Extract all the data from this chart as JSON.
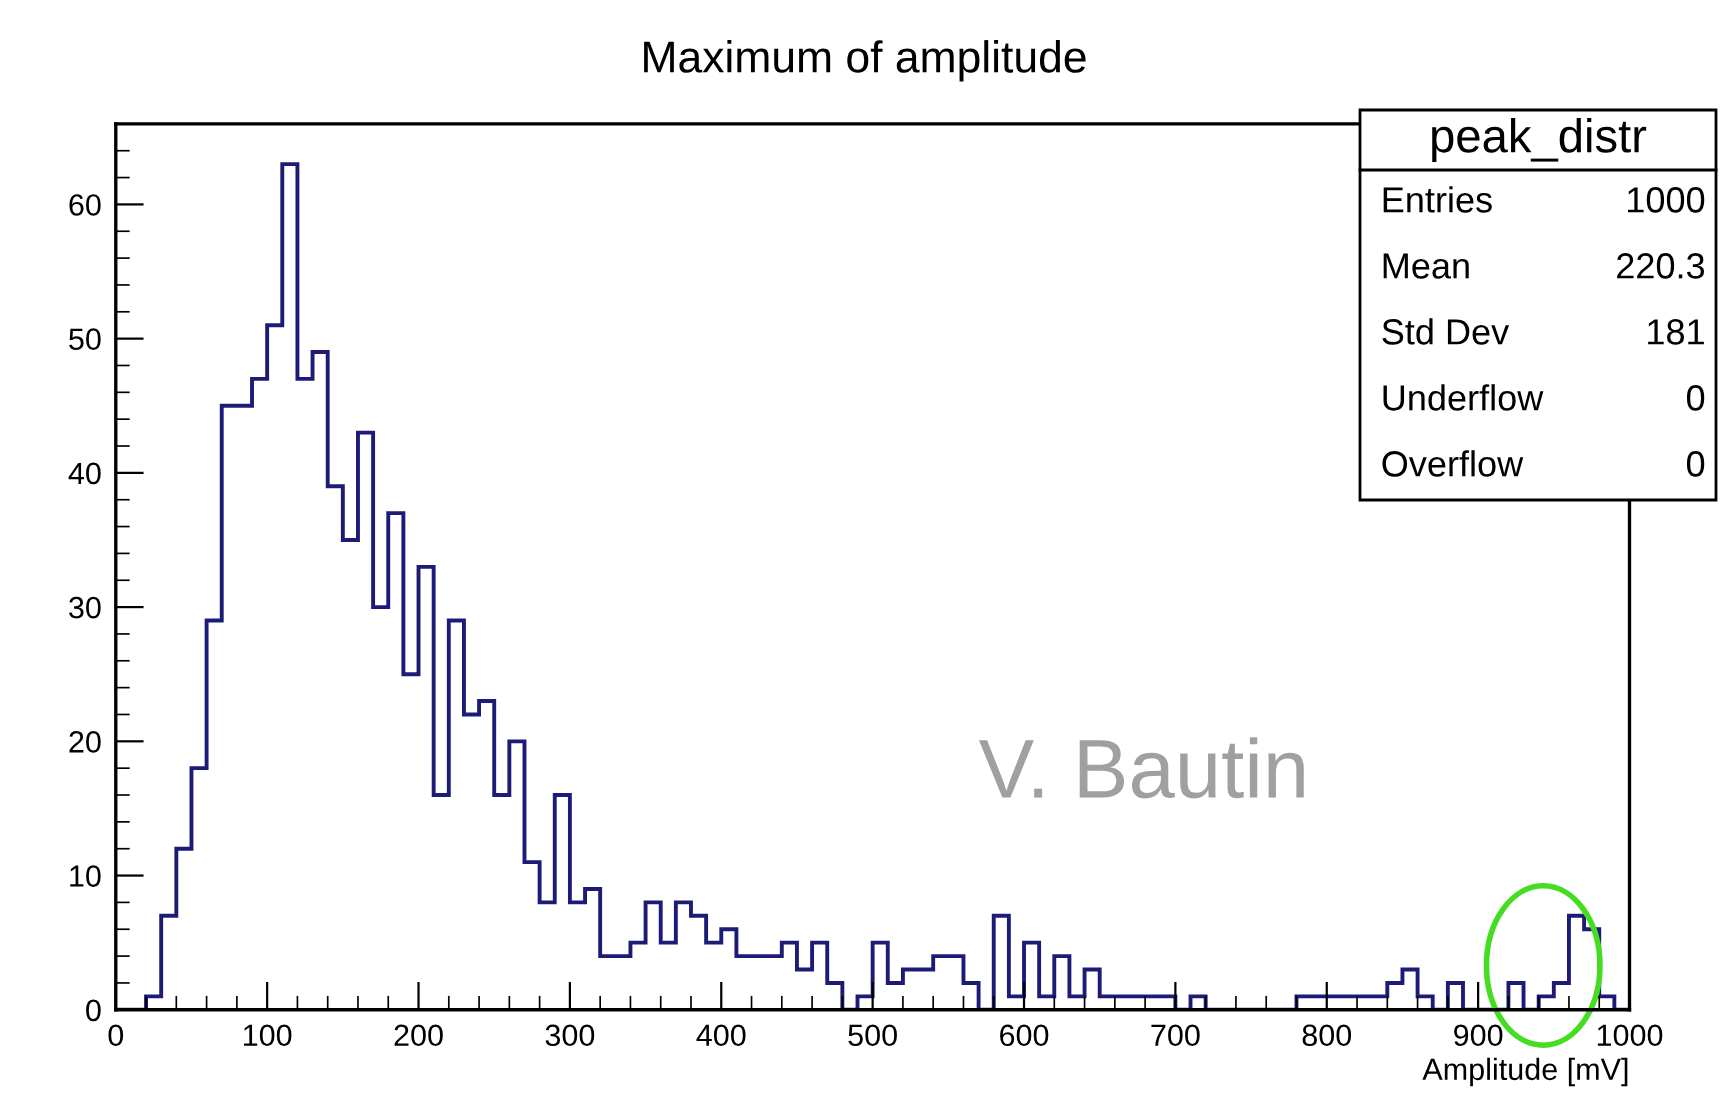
{
  "chart_data": {
    "type": "histogram",
    "title": "Maximum of amplitude",
    "xlabel": "Amplitude [mV]",
    "bins": [
      0,
      10,
      20,
      30,
      40,
      50,
      60,
      70,
      80,
      90,
      100,
      110,
      120,
      130,
      140,
      150,
      160,
      170,
      180,
      190,
      200,
      210,
      220,
      230,
      240,
      250,
      260,
      270,
      280,
      290,
      300,
      310,
      320,
      330,
      340,
      350,
      360,
      370,
      380,
      390,
      400,
      410,
      420,
      430,
      440,
      450,
      460,
      470,
      480,
      490,
      500,
      510,
      520,
      530,
      540,
      550,
      560,
      570,
      580,
      590,
      600,
      610,
      620,
      630,
      640,
      650,
      660,
      670,
      680,
      690,
      700,
      710,
      720,
      730,
      740,
      750,
      760,
      770,
      780,
      790,
      800,
      810,
      820,
      830,
      840,
      850,
      860,
      870,
      880,
      890,
      900,
      910,
      920,
      930,
      940,
      950,
      960,
      970,
      980,
      990,
      1000
    ],
    "values": [
      0,
      0,
      1,
      7,
      12,
      18,
      29,
      45,
      45,
      47,
      51,
      63,
      47,
      49,
      39,
      35,
      43,
      30,
      37,
      25,
      33,
      16,
      29,
      22,
      23,
      16,
      20,
      11,
      8,
      16,
      8,
      9,
      4,
      4,
      5,
      8,
      5,
      8,
      7,
      5,
      6,
      4,
      4,
      4,
      5,
      3,
      5,
      2,
      0,
      1,
      5,
      2,
      3,
      3,
      4,
      4,
      2,
      0,
      7,
      1,
      5,
      1,
      4,
      1,
      3,
      1,
      1,
      1,
      1,
      1,
      0,
      1,
      0,
      0,
      0,
      0,
      0,
      0,
      1,
      1,
      1,
      1,
      1,
      1,
      2,
      3,
      1,
      0,
      2,
      0,
      0,
      0,
      2,
      0,
      1,
      2,
      7,
      6,
      1,
      0
    ],
    "color": "#1c1c78",
    "xlim": [
      0,
      1000
    ],
    "xticks": [
      0,
      100,
      200,
      300,
      400,
      500,
      600,
      700,
      800,
      900,
      1000
    ],
    "ylim": [
      0,
      66
    ],
    "yticks": [
      0,
      10,
      20,
      30,
      40,
      50,
      60
    ],
    "grid": false,
    "annotations": [
      "peak_distr",
      "Entries",
      "1000",
      "Mean",
      "220.3",
      "Std Dev",
      "181",
      "Underflow",
      "0",
      "Overflow",
      "0",
      "V. Bautin"
    ]
  }
}
